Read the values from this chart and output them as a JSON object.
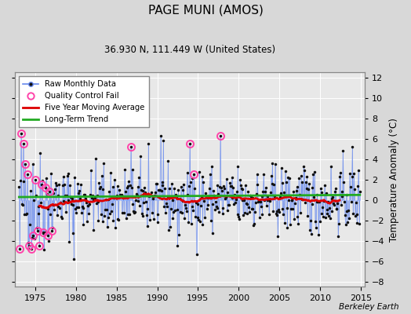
{
  "title": "PAGE MUNI (AMOS)",
  "subtitle": "36.930 N, 111.449 W (United States)",
  "ylabel": "Temperature Anomaly (°C)",
  "attribution": "Berkeley Earth",
  "ylim": [
    -8.5,
    12.5
  ],
  "xlim": [
    1972.5,
    2015.5
  ],
  "xticks": [
    1975,
    1980,
    1985,
    1990,
    1995,
    2000,
    2005,
    2010,
    2015
  ],
  "yticks": [
    -8,
    -6,
    -4,
    -2,
    0,
    2,
    4,
    6,
    8,
    10,
    12
  ],
  "bg_color": "#d8d8d8",
  "plot_bg_color": "#e8e8e8",
  "grid_color": "#ffffff",
  "raw_line_color": "#6688ee",
  "raw_dot_color": "#111111",
  "qc_fail_color": "#ff44aa",
  "moving_avg_color": "#dd0000",
  "trend_color": "#22aa22",
  "seed": 42,
  "figwidth": 5.24,
  "figheight": 4.0,
  "dpi": 100
}
